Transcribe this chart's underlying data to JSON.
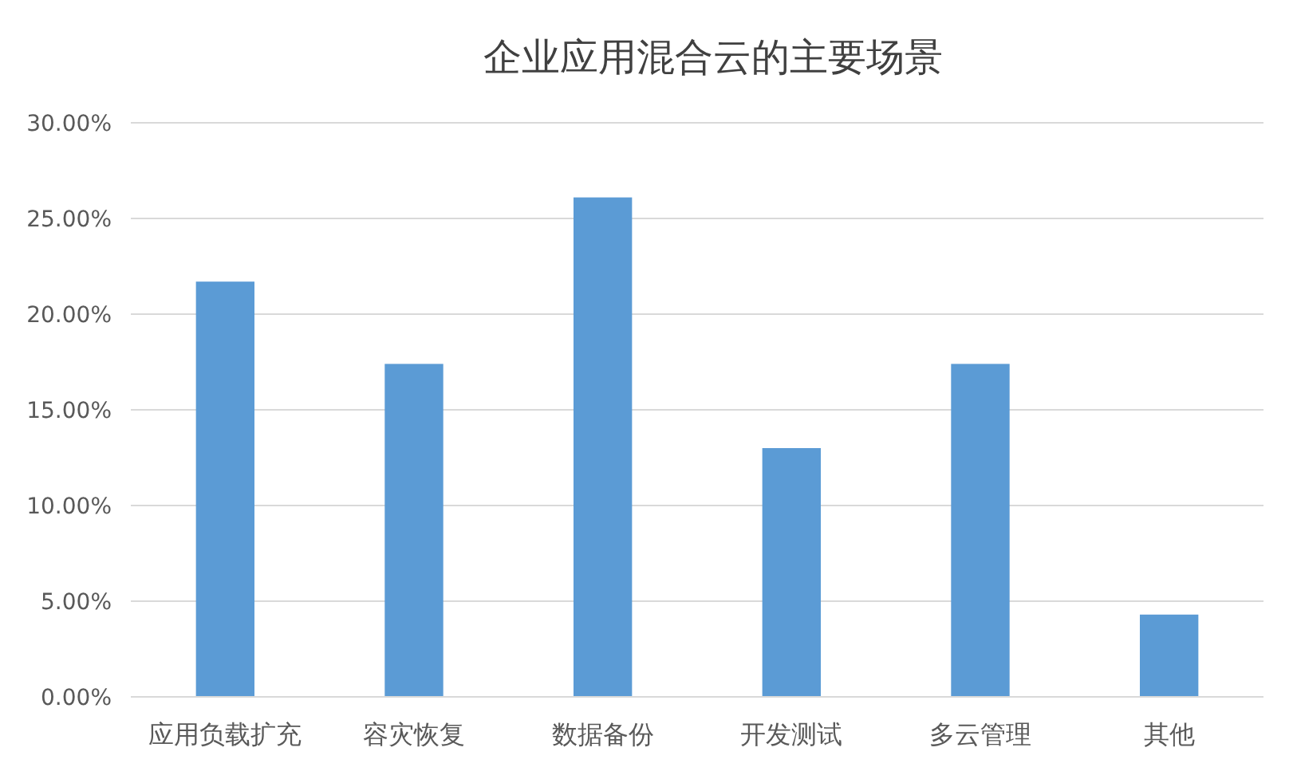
{
  "chart_data": {
    "type": "bar",
    "title": "企业应用混合云的主要场景",
    "categories": [
      "应用负载扩充",
      "容灾恢复",
      "数据备份",
      "开发测试",
      "多云管理",
      "其他"
    ],
    "values": [
      21.7,
      17.4,
      26.1,
      13.0,
      17.4,
      4.3
    ],
    "color": "#5b9bd5",
    "ylim": [
      0,
      30
    ],
    "yticks": [
      {
        "value": 0,
        "label": "0.00%"
      },
      {
        "value": 5,
        "label": "5.00%"
      },
      {
        "value": 10,
        "label": "10.00%"
      },
      {
        "value": 15,
        "label": "15.00%"
      },
      {
        "value": 20,
        "label": "20.00%"
      },
      {
        "value": 25,
        "label": "25.00%"
      },
      {
        "value": 30,
        "label": "30.00%"
      }
    ],
    "grid": "y"
  }
}
